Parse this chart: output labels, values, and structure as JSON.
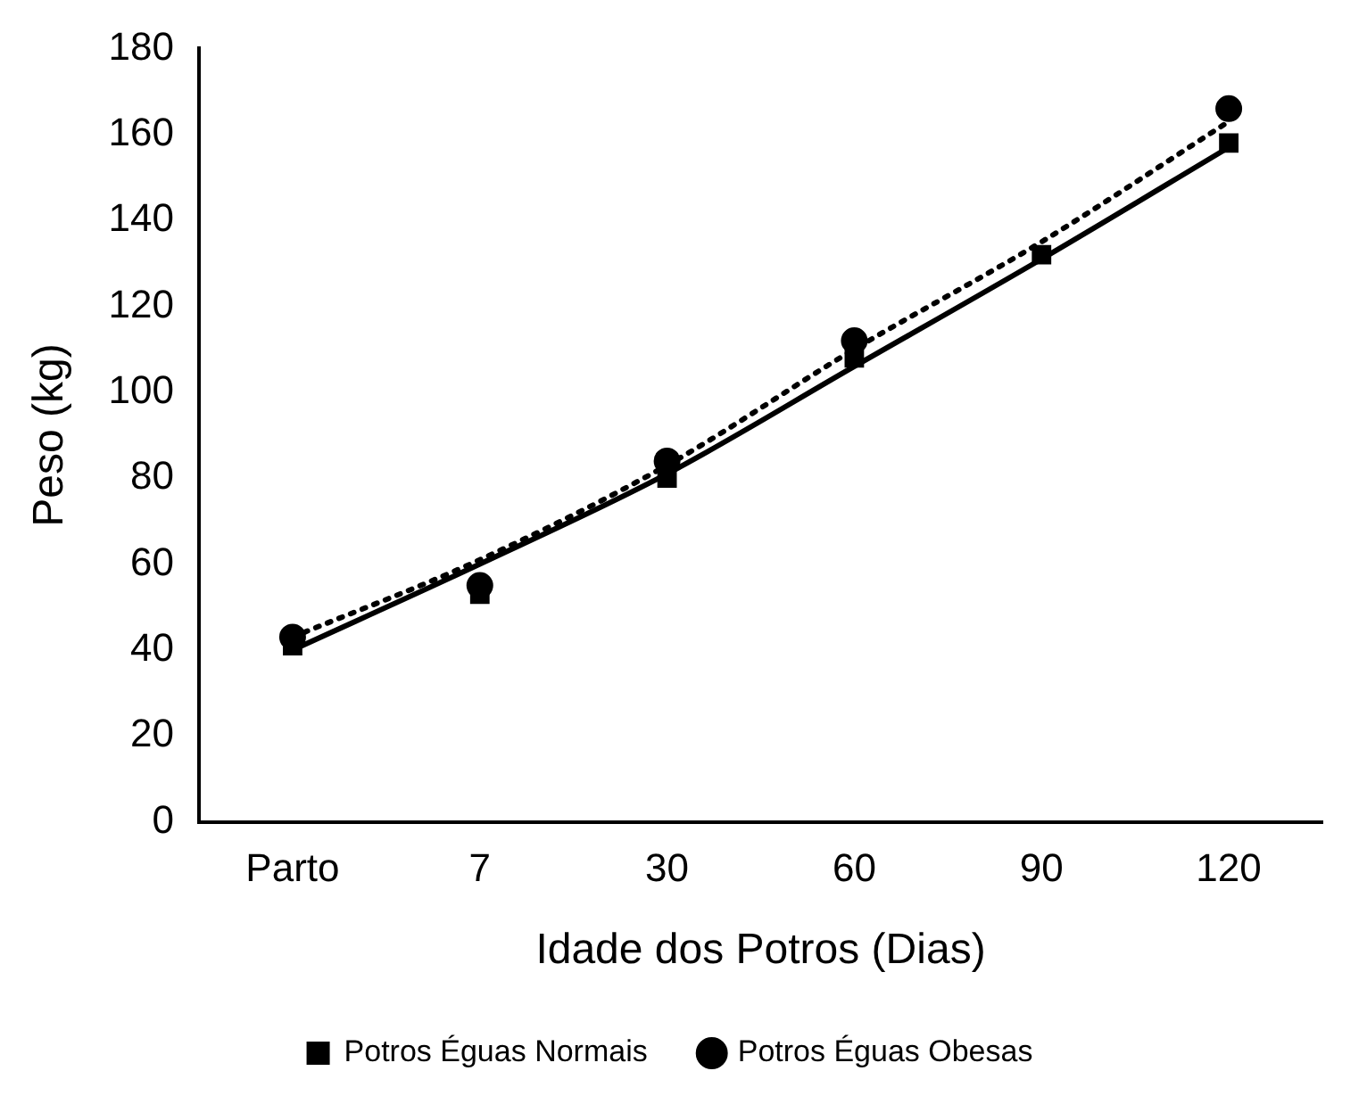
{
  "chart_data": {
    "type": "line",
    "xlabel": "Idade dos Potros (Dias)",
    "ylabel": "Peso (kg)",
    "categories": [
      "Parto",
      "7",
      "30",
      "60",
      "90",
      "120"
    ],
    "ylim": [
      0,
      180
    ],
    "yticks": [
      0,
      20,
      40,
      60,
      80,
      100,
      120,
      140,
      160,
      180
    ],
    "grid": false,
    "legend": "bottom",
    "series": [
      {
        "name": "Potros Éguas Normais",
        "type": "scatter",
        "marker": "square",
        "color": "#000000",
        "values": [
          41,
          53,
          80,
          108,
          132,
          158
        ]
      },
      {
        "name": "Potros Éguas Obesas",
        "type": "scatter",
        "marker": "circle",
        "color": "#000000",
        "values": [
          43,
          55,
          84,
          112,
          null,
          166
        ]
      },
      {
        "type": "line",
        "marker": "none",
        "line_style": "solid",
        "color": "#000000",
        "values": [
          40,
          60,
          81,
          106,
          131,
          157
        ]
      },
      {
        "type": "line",
        "marker": "none",
        "line_style": "dotted",
        "color": "#000000",
        "values": [
          43,
          61,
          83,
          110,
          135,
          163
        ]
      }
    ]
  }
}
